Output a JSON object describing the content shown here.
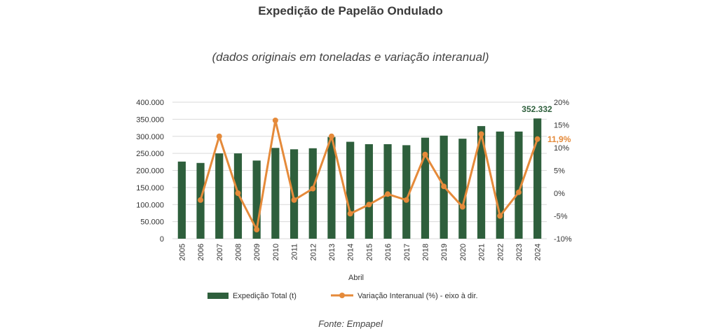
{
  "header": {
    "title": "Expedição de Papelão Ondulado",
    "subtitle": "(dados originais em toneladas e variação interanual)"
  },
  "footer": {
    "source": "Fonte: Empapel"
  },
  "colors": {
    "bar": "#2e5f3c",
    "line": "#e58a3a",
    "last_label_bar": "#2e5f3c",
    "last_label_line": "#e58a3a"
  },
  "chart_data": {
    "type": "bar",
    "xlabel": "Abril",
    "categories": [
      "2005",
      "2006",
      "2007",
      "2008",
      "2009",
      "2010",
      "2011",
      "2012",
      "2013",
      "2014",
      "2015",
      "2016",
      "2017",
      "2018",
      "2019",
      "2020",
      "2021",
      "2022",
      "2023",
      "2024"
    ],
    "series": [
      {
        "name": "Expedição Total (t)",
        "type": "bar",
        "axis": "left",
        "values": [
          226000,
          222000,
          250000,
          250000,
          229000,
          266000,
          262000,
          265000,
          298000,
          284000,
          277000,
          277000,
          274000,
          296000,
          302000,
          293000,
          330000,
          314000,
          314000,
          352332
        ]
      },
      {
        "name": "Variação Interanual (%) - eixo à dir.",
        "type": "line",
        "axis": "right",
        "values": [
          null,
          -1.5,
          12.5,
          0,
          -8,
          16,
          -1.5,
          1,
          12.5,
          -4.5,
          -2.5,
          -0.2,
          -1.5,
          8.5,
          1.5,
          -3,
          13,
          -5,
          0.2,
          11.9
        ]
      }
    ],
    "y_left": {
      "ylim": [
        0,
        400000
      ],
      "ticks": [
        "0",
        "50.000",
        "100.000",
        "150.000",
        "200.000",
        "250.000",
        "300.000",
        "350.000",
        "400.000"
      ]
    },
    "y_right": {
      "ylim": [
        -10,
        20
      ],
      "ticks": [
        "-10%",
        "-5%",
        "0%",
        "5%",
        "10%",
        "15%",
        "20%"
      ]
    },
    "annotations": {
      "last_bar_label": "352.332",
      "last_line_label": "11,9%"
    },
    "legend_position": "bottom",
    "grid": true
  }
}
